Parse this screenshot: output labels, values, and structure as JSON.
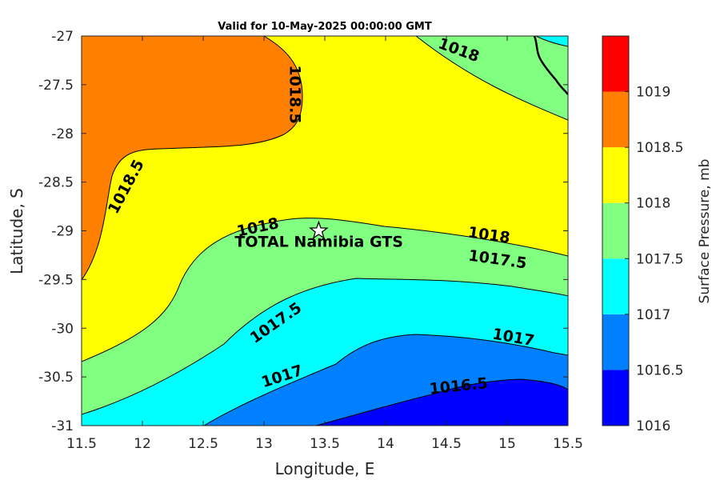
{
  "chart_data": {
    "type": "contour",
    "title": "Valid for 10-May-2025 00:00:00 GMT",
    "xlabel": "Longitude, E",
    "ylabel": "Latitude, S",
    "xlim": [
      11.5,
      15.5
    ],
    "ylim": [
      -31,
      -27
    ],
    "xticks": [
      "11.5",
      "12",
      "12.5",
      "13",
      "13.5",
      "14",
      "14.5",
      "15",
      "15.5"
    ],
    "yticks": [
      "-27",
      "-27.5",
      "-28",
      "-28.5",
      "-29",
      "-29.5",
      "-30",
      "-30.5",
      "-31"
    ],
    "contour_labels": [
      {
        "text": "1018.5",
        "lon": 13.25,
        "lat": -27.6
      },
      {
        "text": "1018.5",
        "lon": 11.87,
        "lat": -28.55
      },
      {
        "text": "1018",
        "lon": 14.6,
        "lat": -27.15
      },
      {
        "text": "1018",
        "lon": 12.95,
        "lat": -28.97
      },
      {
        "text": "1018",
        "lon": 14.85,
        "lat": -29.05
      },
      {
        "text": "1017.5",
        "lon": 13.1,
        "lat": -29.95
      },
      {
        "text": "1017.5",
        "lon": 14.92,
        "lat": -29.3
      },
      {
        "text": "1017",
        "lon": 13.15,
        "lat": -30.5
      },
      {
        "text": "1017",
        "lon": 15.05,
        "lat": -30.1
      },
      {
        "text": "1016.5",
        "lon": 14.6,
        "lat": -30.6
      }
    ],
    "site": {
      "label": "TOTAL Namibia GTS",
      "lon": 13.45,
      "lat": -29.0
    },
    "colorbar": {
      "label": "Surface Pressure, mb",
      "levels": [
        "1016",
        "1016.5",
        "1017",
        "1017.5",
        "1018",
        "1018.5",
        "1019"
      ],
      "colors": [
        "#0000ff",
        "#0080ff",
        "#00ffff",
        "#80ff80",
        "#ffff00",
        "#ff8000",
        "#ff0000"
      ]
    }
  }
}
